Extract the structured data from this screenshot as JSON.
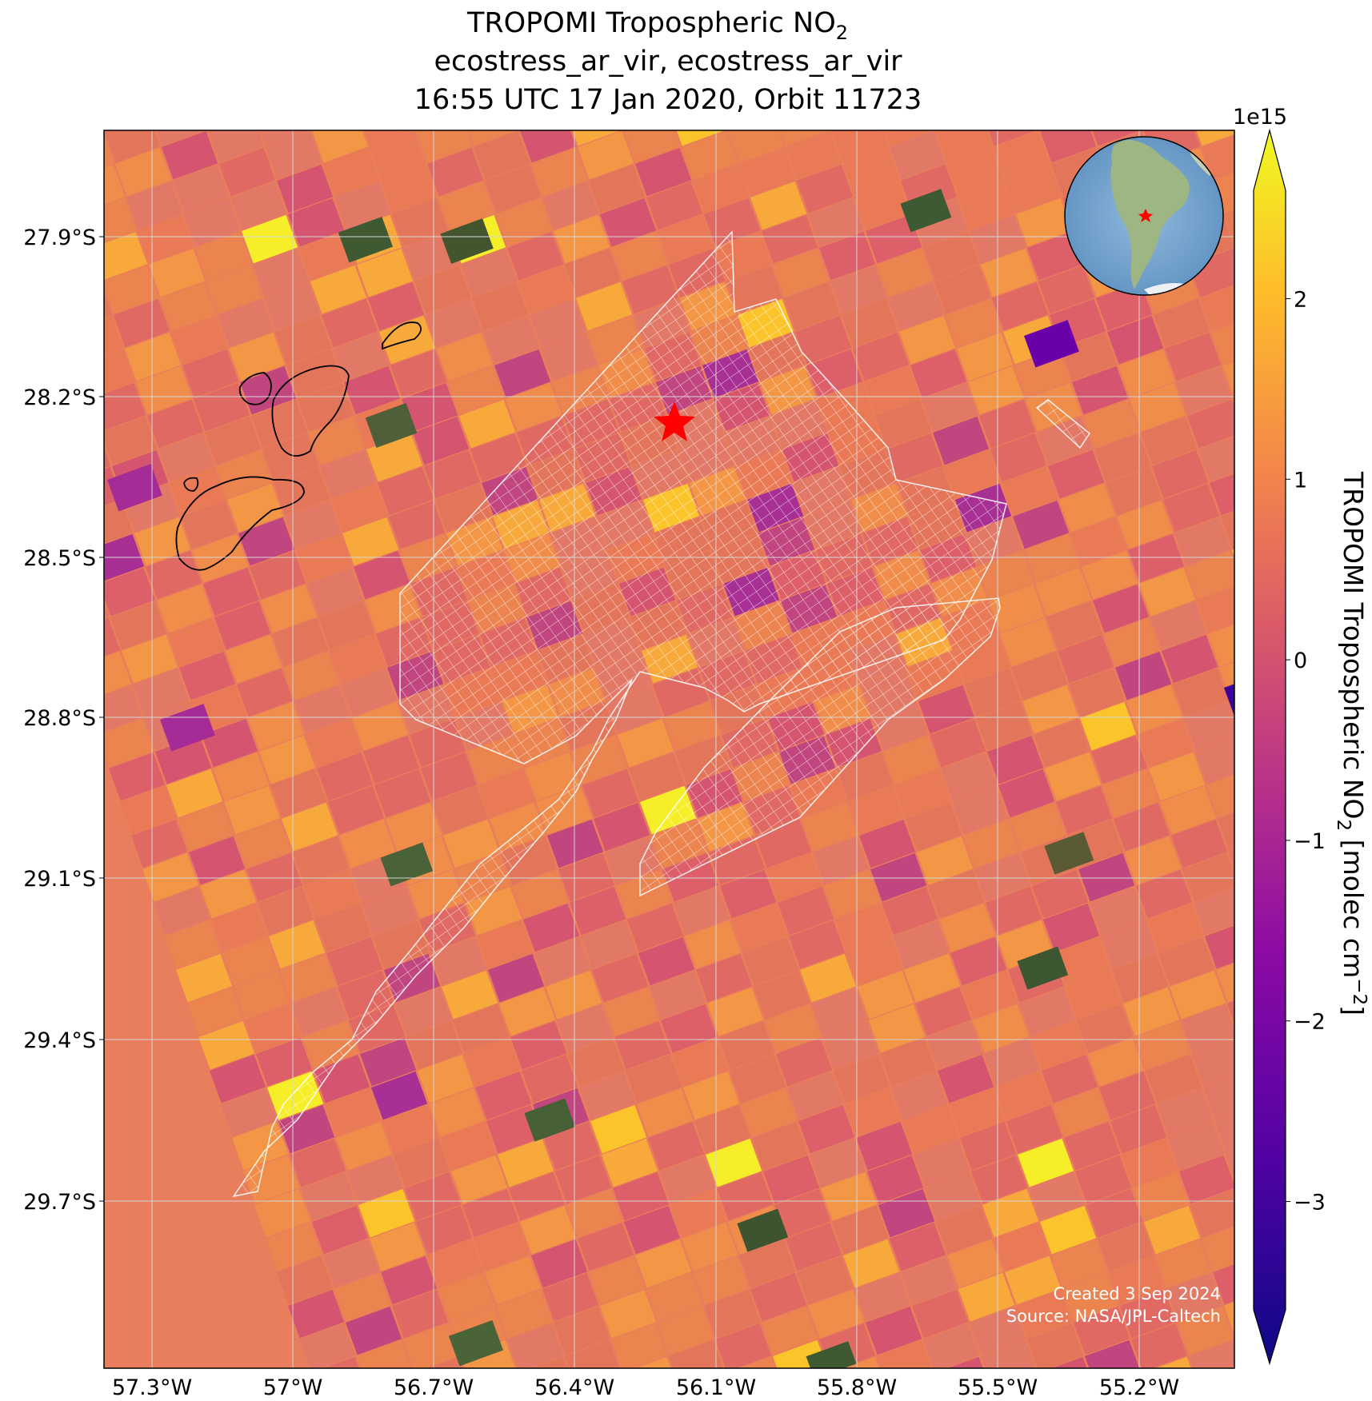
{
  "title": {
    "line1_prefix": "TROPOMI Tropospheric NO",
    "line1_sub": "2",
    "line2": "ecostress_ar_vir, ecostress_ar_vir",
    "line3": "16:55 UTC 17 Jan 2020, Orbit 11723"
  },
  "map": {
    "lat_labels": [
      "27.9°S",
      "28.2°S",
      "28.5°S",
      "28.8°S",
      "29.1°S",
      "29.4°S",
      "29.7°S"
    ],
    "lon_labels": [
      "57.3°W",
      "57°W",
      "56.7°W",
      "56.4°W",
      "56.1°W",
      "55.8°W",
      "55.5°W",
      "55.2°W"
    ],
    "marker_icon": "red-star-icon",
    "inset_icon": "globe-south-america-icon",
    "credit_line1": "Created 3 Sep 2024",
    "credit_line2": "Source: NASA/JPL-Caltech"
  },
  "colorbar": {
    "exponent_label": "1e15",
    "ticks": [
      "2",
      "1",
      "0",
      "−1",
      "−2",
      "−3"
    ],
    "tick_values": [
      2,
      1,
      0,
      -1,
      -2,
      -3
    ],
    "range": [
      -3.6,
      2.6
    ],
    "label_prefix": "TROPOMI Tropospheric NO",
    "label_sub": "2",
    "label_mid": " [molec cm",
    "label_sup": "−2",
    "label_suffix": "]",
    "colormap": "plasma",
    "colors": [
      "#0d0887",
      "#6a00a8",
      "#b12a90",
      "#e16462",
      "#fca636",
      "#f0f921"
    ]
  }
}
